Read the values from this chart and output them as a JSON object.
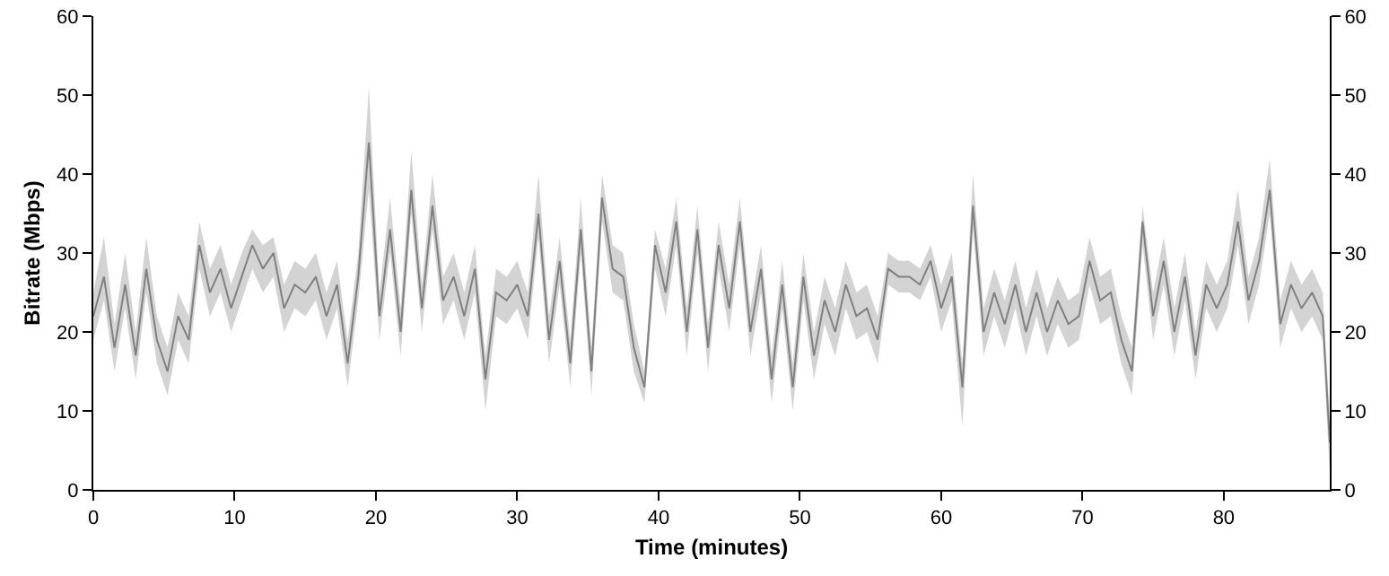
{
  "chart_data": {
    "type": "line",
    "xlabel": "Time (minutes)",
    "ylabel": "Bitrate (Mbps)",
    "xlim": [
      0,
      87.5
    ],
    "xticks": [
      0,
      10,
      20,
      30,
      40,
      50,
      60,
      70,
      80
    ],
    "ylim": [
      0,
      60
    ],
    "yticks": [
      0,
      10,
      20,
      30,
      40,
      50,
      60
    ],
    "y2lim": [
      0,
      60
    ],
    "y2ticks": [
      0,
      10,
      20,
      30,
      40,
      50,
      60
    ],
    "x": [
      0,
      0.75,
      1.5,
      2.25,
      3,
      3.75,
      4.5,
      5.25,
      6,
      6.75,
      7.5,
      8.25,
      9,
      9.75,
      10.5,
      11.25,
      12,
      12.75,
      13.5,
      14.25,
      15,
      15.75,
      16.5,
      17.25,
      18,
      18.75,
      19.5,
      20.25,
      21,
      21.75,
      22.5,
      23.25,
      24,
      24.75,
      25.5,
      26.25,
      27,
      27.75,
      28.5,
      29.25,
      30,
      30.75,
      31.5,
      32.25,
      33,
      33.75,
      34.5,
      35.25,
      36,
      36.75,
      37.5,
      38.25,
      39,
      39.75,
      40.5,
      41.25,
      42,
      42.75,
      43.5,
      44.25,
      45,
      45.75,
      46.5,
      47.25,
      48,
      48.75,
      49.5,
      50.25,
      51,
      51.75,
      52.5,
      53.25,
      54,
      54.75,
      55.5,
      56.25,
      57,
      57.75,
      58.5,
      59.25,
      60,
      60.75,
      61.5,
      62.25,
      63,
      63.75,
      64.5,
      65.25,
      66,
      66.75,
      67.5,
      68.25,
      69,
      69.75,
      70.5,
      71.25,
      72,
      72.75,
      73.5,
      74.25,
      75,
      75.75,
      76.5,
      77.25,
      78,
      78.75,
      79.5,
      80.25,
      81,
      81.75,
      82.5,
      83.25,
      84,
      84.75,
      85.5,
      86.25,
      87,
      87.5
    ],
    "series": [
      {
        "color": "#808080",
        "values": [
          22,
          27,
          18,
          26,
          17,
          28,
          19,
          15,
          22,
          19,
          31,
          25,
          28,
          23,
          27,
          31,
          28,
          30,
          23,
          26,
          25,
          27,
          22,
          26,
          16,
          27,
          44,
          22,
          33,
          20,
          38,
          23,
          36,
          24,
          27,
          22,
          28,
          14,
          25,
          24,
          26,
          22,
          35,
          19,
          29,
          16,
          33,
          15,
          37,
          28,
          27,
          18,
          13,
          31,
          25,
          34,
          20,
          33,
          18,
          31,
          23,
          34,
          20,
          28,
          14,
          26,
          13,
          27,
          17,
          24,
          20,
          26,
          22,
          23,
          19,
          28,
          27,
          27,
          26,
          29,
          23,
          27,
          13,
          36,
          20,
          25,
          21,
          26,
          20,
          25,
          20,
          24,
          21,
          22,
          29,
          24,
          25,
          19,
          15,
          34,
          22,
          29,
          20,
          27,
          17,
          26,
          23,
          26,
          34,
          24,
          29,
          38,
          21,
          26,
          23,
          25,
          22,
          6
        ],
        "lower": [
          19,
          24,
          15,
          23,
          14,
          25,
          16,
          12,
          19,
          16,
          28,
          22,
          25,
          20,
          24,
          28,
          25,
          27,
          20,
          23,
          22,
          24,
          19,
          23,
          13,
          24,
          38,
          19,
          30,
          17,
          35,
          20,
          33,
          21,
          24,
          19,
          25,
          10,
          22,
          21,
          23,
          19,
          32,
          16,
          26,
          13,
          30,
          12,
          34,
          25,
          24,
          15,
          11,
          28,
          22,
          31,
          17,
          30,
          15,
          28,
          20,
          31,
          17,
          25,
          11,
          23,
          10,
          24,
          14,
          21,
          17,
          23,
          19,
          20,
          16,
          26,
          25,
          25,
          24,
          27,
          20,
          24,
          8,
          33,
          17,
          22,
          18,
          23,
          17,
          22,
          17,
          21,
          18,
          19,
          26,
          21,
          22,
          16,
          12,
          31,
          19,
          26,
          17,
          24,
          14,
          23,
          20,
          23,
          31,
          21,
          26,
          35,
          18,
          23,
          20,
          22,
          19,
          2
        ],
        "upper": [
          25,
          32,
          21,
          30,
          20,
          32,
          22,
          18,
          25,
          22,
          34,
          28,
          31,
          26,
          30,
          33,
          31,
          32,
          26,
          29,
          28,
          30,
          25,
          29,
          19,
          30,
          51,
          25,
          37,
          23,
          43,
          26,
          40,
          27,
          30,
          25,
          31,
          17,
          28,
          27,
          29,
          25,
          40,
          22,
          32,
          19,
          37,
          18,
          40,
          31,
          30,
          21,
          15,
          33,
          28,
          37,
          23,
          36,
          21,
          34,
          26,
          37,
          23,
          31,
          17,
          29,
          16,
          30,
          20,
          27,
          23,
          29,
          25,
          26,
          22,
          30,
          29,
          29,
          28,
          31,
          26,
          30,
          16,
          40,
          23,
          28,
          24,
          29,
          23,
          28,
          23,
          27,
          24,
          25,
          32,
          27,
          28,
          22,
          18,
          36,
          25,
          32,
          23,
          30,
          20,
          29,
          26,
          29,
          38,
          27,
          32,
          42,
          24,
          29,
          26,
          28,
          25,
          9
        ]
      }
    ]
  }
}
